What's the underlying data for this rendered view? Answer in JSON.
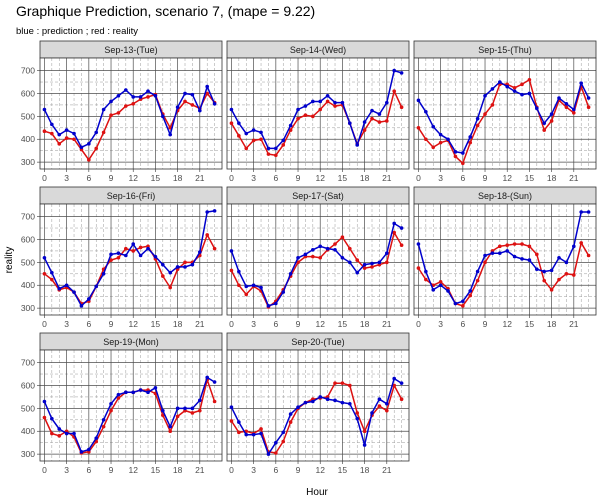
{
  "title": "Graphique Prediction, scenario 7, (mape = 9.22)",
  "subtitle": "blue : prediction ; red : reality",
  "colors": {
    "prediction": "#0000CC",
    "reality": "#DD1111",
    "strip_bg": "#D9D9D9",
    "grid_major": "#4D4D4D",
    "grid_minor": "#9A9A9A"
  },
  "chart_data": {
    "type": "line",
    "xlabel": "Hour",
    "ylabel": "reality",
    "x": [
      0,
      1,
      2,
      3,
      4,
      5,
      6,
      7,
      8,
      9,
      10,
      11,
      12,
      13,
      14,
      15,
      16,
      17,
      18,
      19,
      20,
      21,
      22,
      23
    ],
    "xticks": [
      0,
      3,
      6,
      9,
      12,
      15,
      18,
      21
    ],
    "yticks": [
      300,
      400,
      500,
      600,
      700
    ],
    "ylim": [
      270,
      755
    ],
    "xlim": [
      -0.6,
      24
    ],
    "grid": true,
    "panels": [
      {
        "label": "Sep-13-(Tue)",
        "series": [
          {
            "name": "prediction",
            "values": [
              530,
              465,
              420,
              440,
              425,
              365,
              380,
              430,
              530,
              565,
              590,
              615,
              585,
              585,
              610,
              590,
              500,
              420,
              540,
              600,
              595,
              525,
              630,
              555
            ]
          },
          {
            "name": "reality",
            "values": [
              435,
              425,
              380,
              405,
              400,
              355,
              310,
              360,
              430,
              505,
              515,
              545,
              555,
              575,
              585,
              595,
              510,
              450,
              525,
              565,
              550,
              535,
              600,
              560
            ]
          }
        ]
      },
      {
        "label": "Sep-14-(Wed)",
        "series": [
          {
            "name": "prediction",
            "values": [
              530,
              470,
              425,
              440,
              430,
              360,
              360,
              395,
              460,
              530,
              545,
              565,
              565,
              590,
              560,
              560,
              470,
              375,
              475,
              525,
              510,
              560,
              700,
              690
            ]
          },
          {
            "name": "reality",
            "values": [
              470,
              415,
              360,
              395,
              400,
              335,
              330,
              375,
              440,
              490,
              505,
              500,
              530,
              565,
              545,
              550,
              470,
              380,
              440,
              490,
              475,
              480,
              610,
              540
            ]
          }
        ]
      },
      {
        "label": "Sep-15-(Thu)",
        "series": [
          {
            "name": "prediction",
            "values": [
              570,
              520,
              455,
              420,
              400,
              345,
              340,
              410,
              490,
              590,
              620,
              650,
              630,
              610,
              595,
              600,
              535,
              470,
              510,
              580,
              555,
              530,
              645,
              580
            ]
          },
          {
            "name": "reality",
            "values": [
              450,
              400,
              365,
              385,
              395,
              325,
              295,
              385,
              460,
              510,
              550,
              640,
              640,
              625,
              640,
              660,
              540,
              440,
              480,
              570,
              540,
              515,
              630,
              540
            ]
          }
        ]
      },
      {
        "label": "Sep-16-(Fri)",
        "series": [
          {
            "name": "prediction",
            "values": [
              520,
              455,
              385,
              400,
              370,
              310,
              340,
              395,
              450,
              535,
              540,
              530,
              580,
              530,
              560,
              525,
              490,
              455,
              480,
              480,
              490,
              545,
              720,
              725
            ]
          },
          {
            "name": "reality",
            "values": [
              450,
              425,
              380,
              390,
              370,
              320,
              330,
              395,
              470,
              510,
              520,
              560,
              550,
              565,
              570,
              515,
              440,
              390,
              470,
              500,
              500,
              530,
              620,
              560
            ]
          }
        ]
      },
      {
        "label": "Sep-17-(Sat)",
        "series": [
          {
            "name": "prediction",
            "values": [
              550,
              460,
              395,
              400,
              390,
              310,
              320,
              370,
              450,
              520,
              535,
              555,
              570,
              560,
              555,
              520,
              500,
              455,
              490,
              495,
              500,
              540,
              670,
              650
            ]
          },
          {
            "name": "reality",
            "values": [
              465,
              400,
              360,
              395,
              375,
              305,
              330,
              380,
              440,
              500,
              525,
              525,
              520,
              555,
              580,
              610,
              560,
              510,
              475,
              480,
              490,
              500,
              630,
              575
            ]
          }
        ]
      },
      {
        "label": "Sep-18-(Sun)",
        "series": [
          {
            "name": "prediction",
            "values": [
              580,
              460,
              380,
              400,
              375,
              320,
              330,
              375,
              460,
              530,
              540,
              540,
              550,
              525,
              515,
              510,
              470,
              460,
              465,
              520,
              500,
              570,
              720,
              720
            ]
          },
          {
            "name": "reality",
            "values": [
              475,
              425,
              400,
              415,
              385,
              320,
              310,
              355,
              420,
              500,
              550,
              570,
              575,
              580,
              580,
              570,
              535,
              420,
              380,
              425,
              450,
              445,
              585,
              530
            ]
          }
        ]
      },
      {
        "label": "Sep-19-(Mon)",
        "series": [
          {
            "name": "prediction",
            "values": [
              530,
              455,
              410,
              390,
              390,
              310,
              320,
              370,
              450,
              520,
              560,
              570,
              570,
              580,
              570,
              590,
              490,
              420,
              500,
              500,
              500,
              535,
              635,
              615
            ]
          },
          {
            "name": "reality",
            "values": [
              460,
              390,
              380,
              400,
              375,
              305,
              310,
              355,
              420,
              490,
              545,
              570,
              570,
              580,
              580,
              565,
              470,
              400,
              465,
              490,
              480,
              490,
              625,
              530
            ]
          }
        ]
      },
      {
        "label": "Sep-20-(Tue)",
        "series": [
          {
            "name": "prediction",
            "values": [
              505,
              440,
              385,
              385,
              390,
              300,
              350,
              395,
              475,
              505,
              525,
              530,
              550,
              540,
              535,
              525,
              520,
              455,
              340,
              480,
              540,
              520,
              630,
              610
            ]
          },
          {
            "name": "reality",
            "values": [
              445,
              395,
              400,
              390,
              410,
              310,
              305,
              355,
              440,
              500,
              525,
              540,
              545,
              550,
              610,
              610,
              600,
              480,
              400,
              470,
              510,
              490,
              600,
              540
            ]
          }
        ]
      }
    ]
  }
}
